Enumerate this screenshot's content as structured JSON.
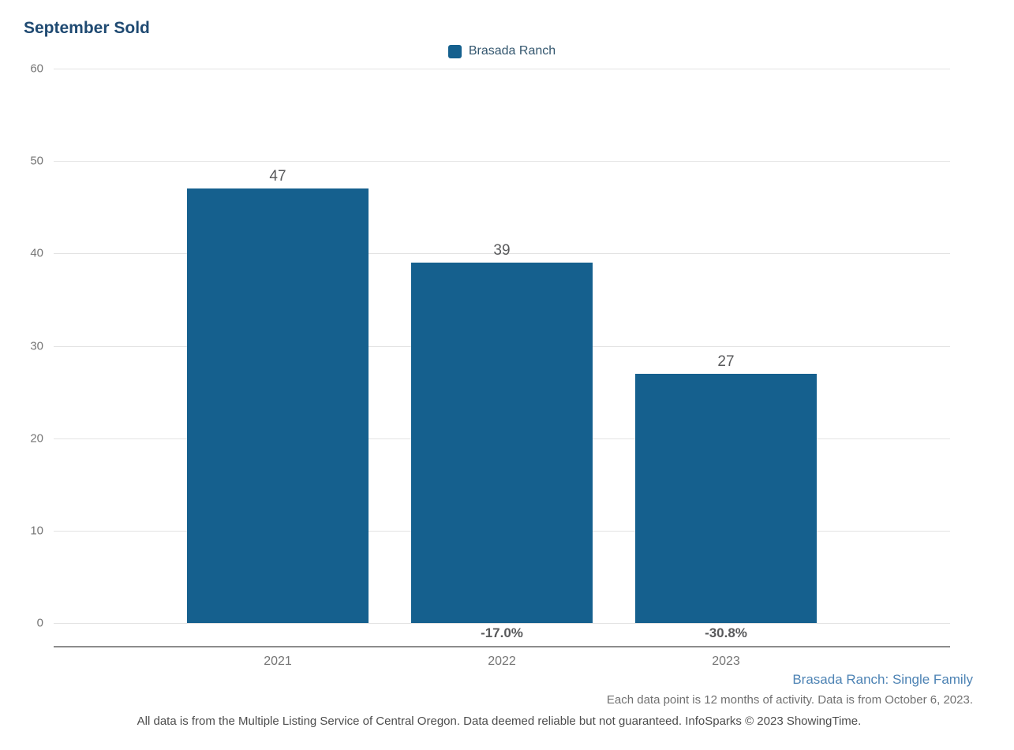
{
  "chart": {
    "title": "September Sold",
    "legend_label": "Brasada Ranch"
  },
  "chart_data": {
    "type": "bar",
    "title": "September Sold",
    "categories": [
      "2021",
      "2022",
      "2023"
    ],
    "series": [
      {
        "name": "Brasada Ranch",
        "values": [
          47,
          39,
          27
        ]
      }
    ],
    "value_labels": [
      "47",
      "39",
      "27"
    ],
    "pct_change_labels": [
      "",
      "-17.0%",
      "-30.8%"
    ],
    "xlabel": "",
    "ylabel": "",
    "ylim": [
      0,
      60
    ],
    "yticks": [
      0,
      10,
      20,
      30,
      40,
      50,
      60
    ],
    "grid": true,
    "legend_position": "top-center",
    "bar_color": "#15608e"
  },
  "footer": {
    "series_note": "Brasada Ranch: Single Family",
    "data_note": "Each data point is 12 months of activity. Data is from October 6, 2023.",
    "disclaimer": "All data is from the Multiple Listing Service of Central Oregon. Data deemed reliable but not guaranteed. InfoSparks © 2023 ShowingTime."
  }
}
